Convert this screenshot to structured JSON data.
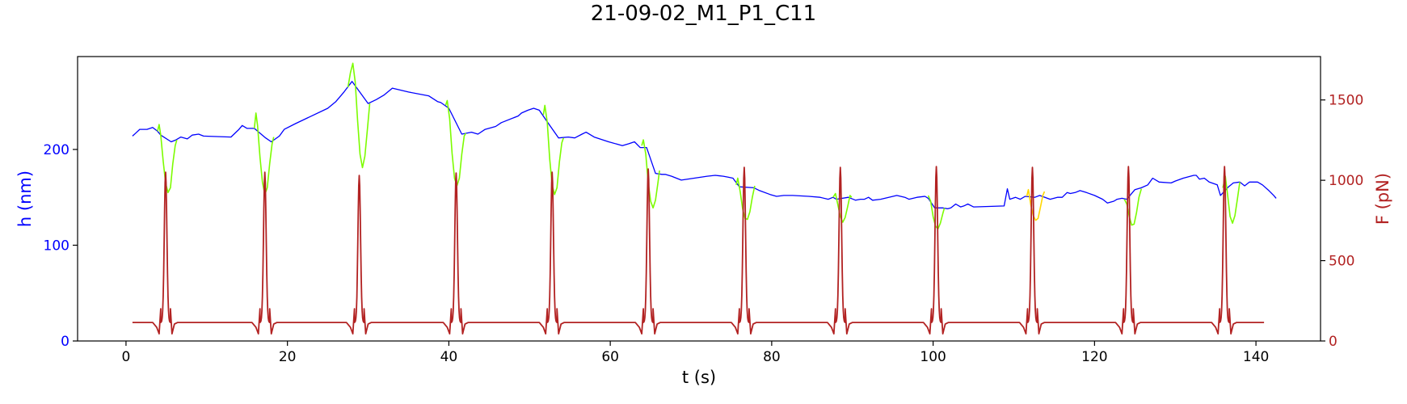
{
  "chart_data": {
    "type": "line",
    "title": "21-09-02_M1_P1_C11",
    "xlabel": "t (s)",
    "ylabel_left": "h (nm)",
    "ylabel_right": "F (pN)",
    "xlim": [
      -6,
      148
    ],
    "ylim_left": [
      0,
      297
    ],
    "ylim_right": [
      0,
      1770
    ],
    "x_ticks": [
      "0",
      "20",
      "40",
      "60",
      "80",
      "100",
      "120",
      "140"
    ],
    "y_left_ticks": [
      "0",
      "100",
      "200"
    ],
    "y_right_ticks": [
      "0",
      "500",
      "1000",
      "1500"
    ],
    "grid": false,
    "colors": {
      "height": "#0000ff",
      "height_pull_highlight": "#7cfc00",
      "height_pull_alt": "#ffd700",
      "force": "#b22222",
      "left_axis": "#0000ff",
      "right_axis": "#b22222"
    },
    "series": [
      {
        "axis": "left",
        "color": "#0000ff",
        "points": [
          [
            0.8,
            214
          ],
          [
            1.2,
            217
          ],
          [
            1.7,
            221
          ],
          [
            2.6,
            221
          ],
          [
            3.3,
            223
          ],
          [
            3.9,
            219
          ],
          [
            4.3,
            215
          ],
          [
            5.6,
            208
          ],
          [
            6.2,
            210
          ],
          [
            6.8,
            213
          ],
          [
            7.6,
            211
          ],
          [
            8.2,
            215
          ],
          [
            9.0,
            216
          ],
          [
            9.6,
            214
          ],
          [
            13.0,
            213
          ],
          [
            14.0,
            221
          ],
          [
            14.4,
            225
          ],
          [
            15.0,
            222
          ],
          [
            15.9,
            222
          ],
          [
            17.3,
            212
          ],
          [
            18.0,
            208
          ],
          [
            19.0,
            214
          ],
          [
            19.6,
            221
          ],
          [
            21.0,
            227
          ],
          [
            22.5,
            233
          ],
          [
            25.0,
            243
          ],
          [
            26.0,
            250
          ],
          [
            27.0,
            260
          ],
          [
            28.0,
            271
          ],
          [
            30.0,
            248
          ],
          [
            31.0,
            252
          ],
          [
            32.0,
            257
          ],
          [
            33.0,
            264
          ],
          [
            34.0,
            262
          ],
          [
            35.0,
            260
          ],
          [
            37.5,
            256
          ],
          [
            38.6,
            250
          ],
          [
            39.0,
            249
          ],
          [
            40.0,
            243
          ],
          [
            41.6,
            216
          ],
          [
            42.8,
            218
          ],
          [
            43.6,
            216
          ],
          [
            44.5,
            221
          ],
          [
            45.8,
            224
          ],
          [
            46.5,
            228
          ],
          [
            48.6,
            235
          ],
          [
            49.0,
            238
          ],
          [
            49.8,
            241
          ],
          [
            50.5,
            243
          ],
          [
            51.2,
            241
          ],
          [
            52.1,
            230
          ],
          [
            53.6,
            212
          ],
          [
            54.8,
            213
          ],
          [
            55.6,
            212
          ],
          [
            56.5,
            216
          ],
          [
            57.0,
            218
          ],
          [
            58.0,
            213
          ],
          [
            59.8,
            208
          ],
          [
            61.5,
            204
          ],
          [
            62.3,
            206
          ],
          [
            63.0,
            208
          ],
          [
            63.7,
            202
          ],
          [
            64.5,
            202
          ],
          [
            65.6,
            175
          ],
          [
            66.4,
            174
          ],
          [
            66.8,
            174
          ],
          [
            67.6,
            172
          ],
          [
            68.8,
            168
          ],
          [
            70.4,
            170
          ],
          [
            72.0,
            172
          ],
          [
            73.0,
            173
          ],
          [
            74.0,
            172
          ],
          [
            74.6,
            171
          ],
          [
            75.2,
            170
          ],
          [
            76.0,
            161
          ],
          [
            77.8,
            160
          ],
          [
            78.5,
            157
          ],
          [
            79.8,
            153
          ],
          [
            80.6,
            151
          ],
          [
            81.5,
            152
          ],
          [
            82.6,
            152
          ],
          [
            84.6,
            151
          ],
          [
            86.0,
            150
          ],
          [
            87.0,
            148
          ],
          [
            87.6,
            150
          ],
          [
            88.0,
            148
          ],
          [
            89.5,
            150
          ],
          [
            90.4,
            147
          ],
          [
            91.0,
            148
          ],
          [
            91.5,
            148
          ],
          [
            92.0,
            150
          ],
          [
            92.5,
            147
          ],
          [
            93.5,
            148
          ],
          [
            94.5,
            150
          ],
          [
            95.5,
            152
          ],
          [
            96.5,
            150
          ],
          [
            97.0,
            148
          ],
          [
            98.0,
            150
          ],
          [
            99.0,
            151
          ],
          [
            99.4,
            149
          ],
          [
            100.2,
            139
          ],
          [
            101.2,
            139
          ],
          [
            101.8,
            138
          ],
          [
            102.2,
            139
          ],
          [
            102.8,
            143
          ],
          [
            103.4,
            140
          ],
          [
            103.8,
            141
          ],
          [
            104.3,
            143
          ],
          [
            105.0,
            140
          ],
          [
            108.8,
            141
          ],
          [
            109.2,
            159
          ],
          [
            109.5,
            148
          ],
          [
            110.2,
            150
          ],
          [
            110.8,
            148
          ],
          [
            111.4,
            151
          ],
          [
            112.6,
            150
          ],
          [
            113.2,
            152
          ],
          [
            114.5,
            148
          ],
          [
            115.4,
            150
          ],
          [
            116.0,
            150
          ],
          [
            116.6,
            155
          ],
          [
            117.0,
            154
          ],
          [
            117.6,
            155
          ],
          [
            118.2,
            157
          ],
          [
            119.0,
            155
          ],
          [
            120.0,
            152
          ],
          [
            121.0,
            148
          ],
          [
            121.6,
            144
          ],
          [
            122.4,
            146
          ],
          [
            122.8,
            148
          ],
          [
            123.4,
            149
          ],
          [
            124.0,
            148
          ],
          [
            125.0,
            158
          ],
          [
            125.8,
            160
          ],
          [
            126.6,
            163
          ],
          [
            127.2,
            170
          ],
          [
            128.0,
            166
          ],
          [
            129.5,
            165
          ],
          [
            130.0,
            167
          ],
          [
            131.0,
            170
          ],
          [
            132.3,
            173
          ],
          [
            132.6,
            173
          ],
          [
            133.0,
            169
          ],
          [
            133.6,
            170
          ],
          [
            134.2,
            166
          ],
          [
            135.2,
            163
          ],
          [
            135.6,
            152
          ],
          [
            136.6,
            161
          ],
          [
            137.2,
            165
          ],
          [
            138.0,
            166
          ],
          [
            138.6,
            162
          ],
          [
            139.2,
            166
          ],
          [
            140.2,
            166
          ],
          [
            140.8,
            163
          ],
          [
            141.6,
            157
          ],
          [
            142.2,
            152
          ],
          [
            142.5,
            149
          ]
        ]
      },
      {
        "axis": "left",
        "color": "#7cfc00",
        "segments": [
          [
            [
              3.9,
              219
            ],
            [
              4.1,
              226
            ],
            [
              4.3,
              215
            ],
            [
              4.6,
              188
            ],
            [
              4.9,
              165
            ],
            [
              5.2,
              155
            ],
            [
              5.5,
              160
            ],
            [
              5.8,
              185
            ],
            [
              6.1,
              204
            ],
            [
              6.3,
              210
            ]
          ],
          [
            [
              15.9,
              222
            ],
            [
              16.1,
              238
            ],
            [
              16.3,
              225
            ],
            [
              16.6,
              192
            ],
            [
              16.9,
              166
            ],
            [
              17.2,
              153
            ],
            [
              17.5,
              160
            ],
            [
              17.8,
              185
            ],
            [
              18.1,
              206
            ],
            [
              18.3,
              213
            ]
          ],
          [
            [
              27.5,
              265
            ],
            [
              27.8,
              280
            ],
            [
              28.1,
              290
            ],
            [
              28.4,
              270
            ],
            [
              28.7,
              230
            ],
            [
              29.0,
              195
            ],
            [
              29.3,
              181
            ],
            [
              29.6,
              193
            ],
            [
              29.9,
              220
            ],
            [
              30.2,
              248
            ]
          ],
          [
            [
              39.6,
              246
            ],
            [
              39.8,
              251
            ],
            [
              40.1,
              232
            ],
            [
              40.4,
              196
            ],
            [
              40.7,
              170
            ],
            [
              41.0,
              162
            ],
            [
              41.3,
              170
            ],
            [
              41.6,
              195
            ],
            [
              41.9,
              214
            ],
            [
              42.1,
              217
            ]
          ],
          [
            [
              51.7,
              236
            ],
            [
              51.9,
              246
            ],
            [
              52.2,
              228
            ],
            [
              52.5,
              190
            ],
            [
              52.8,
              163
            ],
            [
              53.1,
              153
            ],
            [
              53.4,
              160
            ],
            [
              53.7,
              187
            ],
            [
              54.0,
              207
            ],
            [
              54.2,
              212
            ]
          ],
          [
            [
              63.9,
              204
            ],
            [
              64.1,
              210
            ],
            [
              64.4,
              195
            ],
            [
              64.7,
              165
            ],
            [
              65.0,
              146
            ],
            [
              65.3,
              139
            ],
            [
              65.6,
              147
            ],
            [
              65.9,
              165
            ],
            [
              66.1,
              178
            ]
          ],
          [
            [
              75.6,
              163
            ],
            [
              75.8,
              170
            ],
            [
              76.1,
              156
            ],
            [
              76.4,
              138
            ],
            [
              76.7,
              128
            ],
            [
              77.0,
              127
            ],
            [
              77.3,
              135
            ],
            [
              77.6,
              150
            ],
            [
              77.9,
              162
            ]
          ],
          [
            [
              87.6,
              150
            ],
            [
              87.9,
              154
            ],
            [
              88.2,
              142
            ],
            [
              88.5,
              130
            ],
            [
              88.8,
              124
            ],
            [
              89.1,
              129
            ],
            [
              89.4,
              140
            ],
            [
              89.7,
              152
            ],
            [
              89.9,
              150
            ]
          ],
          [
            [
              99.4,
              152
            ],
            [
              99.7,
              146
            ],
            [
              100.0,
              130
            ],
            [
              100.3,
              120
            ],
            [
              100.6,
              117
            ],
            [
              100.9,
              123
            ],
            [
              101.2,
              133
            ],
            [
              101.4,
              139
            ]
          ],
          [
            [
              123.7,
              148
            ],
            [
              124.0,
              143
            ],
            [
              124.3,
              130
            ],
            [
              124.6,
              121
            ],
            [
              124.9,
              122
            ],
            [
              125.2,
              134
            ],
            [
              125.5,
              150
            ],
            [
              125.8,
              159
            ]
          ],
          [
            [
              135.9,
              160
            ],
            [
              136.2,
              172
            ],
            [
              136.5,
              152
            ],
            [
              136.8,
              130
            ],
            [
              137.1,
              123
            ],
            [
              137.4,
              131
            ],
            [
              137.7,
              148
            ],
            [
              138.0,
              166
            ]
          ]
        ]
      },
      {
        "axis": "left",
        "color": "#ffd700",
        "segments": [
          [
            [
              111.6,
              151
            ],
            [
              111.8,
              158
            ],
            [
              112.1,
              142
            ],
            [
              112.4,
              131
            ],
            [
              112.7,
              126
            ],
            [
              113.0,
              128
            ],
            [
              113.3,
              140
            ],
            [
              113.6,
              152
            ],
            [
              113.8,
              156
            ]
          ]
        ]
      },
      {
        "axis": "right",
        "color": "#b22222",
        "baseline": 115,
        "start": 0.8,
        "end": 141.0,
        "peaks": [
          {
            "t": 4.9,
            "f": 1050
          },
          {
            "t": 17.2,
            "f": 1050
          },
          {
            "t": 28.9,
            "f": 1030
          },
          {
            "t": 40.9,
            "f": 1045
          },
          {
            "t": 52.8,
            "f": 1050
          },
          {
            "t": 64.7,
            "f": 1070
          },
          {
            "t": 76.6,
            "f": 1080
          },
          {
            "t": 88.5,
            "f": 1080
          },
          {
            "t": 100.4,
            "f": 1085
          },
          {
            "t": 112.3,
            "f": 1080
          },
          {
            "t": 124.2,
            "f": 1085
          },
          {
            "t": 136.1,
            "f": 1085
          }
        ]
      }
    ]
  }
}
